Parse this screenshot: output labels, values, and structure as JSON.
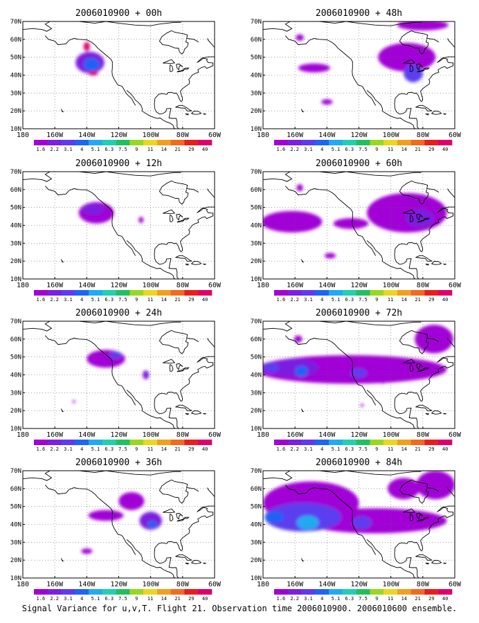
{
  "caption": "Signal Variance for u,v,T. Flight 21. Observation time 2006010900. 2006010600 ensemble.",
  "colors": {
    "levels": [
      "#a100d6",
      "#7c1fe0",
      "#5b3cf0",
      "#1e64f5",
      "#22aaf0",
      "#20d0b0",
      "#20c060",
      "#98d820",
      "#e8d820",
      "#f0a020",
      "#f06a20",
      "#e81e1e",
      "#e0006a"
    ],
    "coast": "#000000",
    "grid": "#666666"
  },
  "chart_data": [
    {
      "type": "contour-map",
      "title": "2006010900 + 00h",
      "lead_hours": 0,
      "xlim": [
        "180",
        "60W"
      ],
      "ylim": [
        "10N",
        "70N"
      ],
      "x_ticks": [
        "180",
        "160W",
        "140W",
        "120W",
        "100W",
        "80W",
        "60W"
      ],
      "y_ticks": [
        "10N",
        "20N",
        "30N",
        "40N",
        "50N",
        "60N",
        "70N"
      ],
      "color_levels": [
        "1.6",
        "2.2",
        "3.1",
        "4",
        "5.1",
        "6.3",
        "7.5",
        "9",
        "11",
        "14",
        "21",
        "29",
        "40"
      ],
      "blobs": [
        {
          "lon": -138,
          "lat": 47,
          "rx": 9,
          "ry": 6,
          "level": 1
        },
        {
          "lon": -137,
          "lat": 46,
          "rx": 5,
          "ry": 3.5,
          "level": 3
        },
        {
          "lon": -140,
          "lat": 56,
          "rx": 2,
          "ry": 2.5,
          "level": 12
        },
        {
          "lon": -136,
          "lat": 41,
          "rx": 3,
          "ry": 1.2,
          "level": 12
        }
      ]
    },
    {
      "type": "contour-map",
      "title": "2006010900 + 12h",
      "lead_hours": 12,
      "xlim": [
        "180",
        "60W"
      ],
      "ylim": [
        "10N",
        "70N"
      ],
      "x_ticks": [
        "180",
        "160W",
        "140W",
        "120W",
        "100W",
        "80W",
        "60W"
      ],
      "y_ticks": [
        "10N",
        "20N",
        "30N",
        "40N",
        "50N",
        "60N",
        "70N"
      ],
      "color_levels": [
        "1.6",
        "2.2",
        "3.1",
        "4",
        "5.1",
        "6.3",
        "7.5",
        "9",
        "11",
        "14",
        "21",
        "29",
        "40"
      ],
      "blobs": [
        {
          "lon": -134,
          "lat": 47,
          "rx": 11,
          "ry": 6,
          "level": 0
        },
        {
          "lon": -136,
          "lat": 49,
          "rx": 7,
          "ry": 3,
          "level": 1
        },
        {
          "lon": -106,
          "lat": 43,
          "rx": 1.5,
          "ry": 1.8,
          "level": 0
        }
      ]
    },
    {
      "type": "contour-map",
      "title": "2006010900 + 24h",
      "lead_hours": 24,
      "xlim": [
        "180",
        "60W"
      ],
      "ylim": [
        "10N",
        "70N"
      ],
      "x_ticks": [
        "180",
        "160W",
        "140W",
        "120W",
        "100W",
        "80W",
        "60W"
      ],
      "y_ticks": [
        "10N",
        "20N",
        "30N",
        "40N",
        "50N",
        "60N",
        "70N"
      ],
      "color_levels": [
        "1.6",
        "2.2",
        "3.1",
        "4",
        "5.1",
        "6.3",
        "7.5",
        "9",
        "11",
        "14",
        "21",
        "29",
        "40"
      ],
      "blobs": [
        {
          "lon": -128,
          "lat": 49,
          "rx": 12,
          "ry": 5,
          "level": 0
        },
        {
          "lon": -122,
          "lat": 51,
          "rx": 4,
          "ry": 2,
          "level": 2
        },
        {
          "lon": -103,
          "lat": 40,
          "rx": 2,
          "ry": 2.5,
          "level": 1
        },
        {
          "lon": -148,
          "lat": 25,
          "rx": 0.8,
          "ry": 0.8,
          "level": 0
        }
      ]
    },
    {
      "type": "contour-map",
      "title": "2006010900 + 36h",
      "lead_hours": 36,
      "xlim": [
        "180",
        "60W"
      ],
      "ylim": [
        "10N",
        "70N"
      ],
      "x_ticks": [
        "180",
        "160W",
        "140W",
        "120W",
        "100W",
        "80W",
        "60W"
      ],
      "y_ticks": [
        "10N",
        "20N",
        "30N",
        "40N",
        "50N",
        "60N",
        "70N"
      ],
      "color_levels": [
        "1.6",
        "2.2",
        "3.1",
        "4",
        "5.1",
        "6.3",
        "7.5",
        "9",
        "11",
        "14",
        "21",
        "29",
        "40"
      ],
      "blobs": [
        {
          "lon": -128,
          "lat": 45,
          "rx": 11,
          "ry": 3,
          "level": 0
        },
        {
          "lon": -112,
          "lat": 53,
          "rx": 8,
          "ry": 5,
          "level": 0
        },
        {
          "lon": -100,
          "lat": 42,
          "rx": 7,
          "ry": 5,
          "level": 1
        },
        {
          "lon": -99,
          "lat": 40,
          "rx": 3,
          "ry": 2,
          "level": 3
        },
        {
          "lon": -140,
          "lat": 25,
          "rx": 3.5,
          "ry": 1.5,
          "level": 0
        }
      ]
    },
    {
      "type": "contour-map",
      "title": "2006010900 + 48h",
      "lead_hours": 48,
      "xlim": [
        "180",
        "60W"
      ],
      "ylim": [
        "10N",
        "70N"
      ],
      "x_ticks": [
        "180",
        "160W",
        "140W",
        "120W",
        "100W",
        "80W",
        "60W"
      ],
      "y_ticks": [
        "10N",
        "20N",
        "30N",
        "40N",
        "50N",
        "60N",
        "70N"
      ],
      "color_levels": [
        "1.6",
        "2.2",
        "3.1",
        "4",
        "5.1",
        "6.3",
        "7.5",
        "9",
        "11",
        "14",
        "21",
        "29",
        "40"
      ],
      "blobs": [
        {
          "lon": -148,
          "lat": 44,
          "rx": 10,
          "ry": 2.5,
          "level": 0
        },
        {
          "lon": -157,
          "lat": 61,
          "rx": 2.5,
          "ry": 1.8,
          "level": 0
        },
        {
          "lon": -90,
          "lat": 50,
          "rx": 18,
          "ry": 8,
          "level": 0
        },
        {
          "lon": -86,
          "lat": 41,
          "rx": 6,
          "ry": 5,
          "level": 2
        },
        {
          "lon": -80,
          "lat": 68,
          "rx": 16,
          "ry": 3,
          "level": 0
        },
        {
          "lon": -140,
          "lat": 25,
          "rx": 3.5,
          "ry": 1.5,
          "level": 0
        }
      ]
    },
    {
      "type": "contour-map",
      "title": "2006010900 + 60h",
      "lead_hours": 60,
      "xlim": [
        "180",
        "60W"
      ],
      "ylim": [
        "10N",
        "70N"
      ],
      "x_ticks": [
        "180",
        "160W",
        "140W",
        "120W",
        "100W",
        "80W",
        "60W"
      ],
      "y_ticks": [
        "10N",
        "20N",
        "30N",
        "40N",
        "50N",
        "60N",
        "70N"
      ],
      "color_levels": [
        "1.6",
        "2.2",
        "3.1",
        "4",
        "5.1",
        "6.3",
        "7.5",
        "9",
        "11",
        "14",
        "21",
        "29",
        "40"
      ],
      "blobs": [
        {
          "lon": -162,
          "lat": 42,
          "rx": 19,
          "ry": 6,
          "level": 0
        },
        {
          "lon": -125,
          "lat": 41,
          "rx": 11,
          "ry": 3,
          "level": 0
        },
        {
          "lon": -90,
          "lat": 47,
          "rx": 25,
          "ry": 11,
          "level": 0
        },
        {
          "lon": -82,
          "lat": 44,
          "rx": 9,
          "ry": 5,
          "level": 1
        },
        {
          "lon": -157,
          "lat": 61,
          "rx": 2,
          "ry": 2,
          "level": 0
        },
        {
          "lon": -138,
          "lat": 23,
          "rx": 3.5,
          "ry": 1.5,
          "level": 0
        }
      ]
    },
    {
      "type": "contour-map",
      "title": "2006010900 + 72h",
      "lead_hours": 72,
      "xlim": [
        "180",
        "60W"
      ],
      "ylim": [
        "10N",
        "70N"
      ],
      "x_ticks": [
        "180",
        "160W",
        "140W",
        "120W",
        "100W",
        "80W",
        "60W"
      ],
      "y_ticks": [
        "10N",
        "20N",
        "30N",
        "40N",
        "50N",
        "60N",
        "70N"
      ],
      "color_levels": [
        "1.6",
        "2.2",
        "3.1",
        "4",
        "5.1",
        "6.3",
        "7.5",
        "9",
        "11",
        "14",
        "21",
        "29",
        "40"
      ],
      "blobs": [
        {
          "lon": -125,
          "lat": 43,
          "rx": 60,
          "ry": 8,
          "level": 0
        },
        {
          "lon": -160,
          "lat": 44,
          "rx": 15,
          "ry": 5,
          "level": 1
        },
        {
          "lon": -156,
          "lat": 42,
          "rx": 4,
          "ry": 3,
          "level": 3
        },
        {
          "lon": -175,
          "lat": 44,
          "rx": 5,
          "ry": 3,
          "level": 2
        },
        {
          "lon": -120,
          "lat": 41,
          "rx": 5,
          "ry": 2.5,
          "level": 2
        },
        {
          "lon": -158,
          "lat": 60,
          "rx": 2.5,
          "ry": 2,
          "level": 0
        },
        {
          "lon": -73,
          "lat": 60,
          "rx": 12,
          "ry": 8,
          "level": 0
        },
        {
          "lon": -105,
          "lat": 36,
          "rx": 1,
          "ry": 1,
          "level": 0
        },
        {
          "lon": -118,
          "lat": 23,
          "rx": 1,
          "ry": 0.8,
          "level": 0
        }
      ]
    },
    {
      "type": "contour-map",
      "title": "2006010900 + 84h",
      "lead_hours": 84,
      "xlim": [
        "180",
        "60W"
      ],
      "ylim": [
        "10N",
        "70N"
      ],
      "x_ticks": [
        "180",
        "160W",
        "140W",
        "120W",
        "100W",
        "80W",
        "60W"
      ],
      "y_ticks": [
        "10N",
        "20N",
        "30N",
        "40N",
        "50N",
        "60N",
        "70N"
      ],
      "color_levels": [
        "1.6",
        "2.2",
        "3.1",
        "4",
        "5.1",
        "6.3",
        "7.5",
        "9",
        "11",
        "14",
        "21",
        "29",
        "40"
      ],
      "blobs": [
        {
          "lon": -150,
          "lat": 52,
          "rx": 30,
          "ry": 12,
          "level": 0
        },
        {
          "lon": -110,
          "lat": 42,
          "rx": 45,
          "ry": 7,
          "level": 0
        },
        {
          "lon": -155,
          "lat": 44,
          "rx": 24,
          "ry": 8,
          "level": 2
        },
        {
          "lon": -173,
          "lat": 44,
          "rx": 6,
          "ry": 3,
          "level": 3
        },
        {
          "lon": -152,
          "lat": 41,
          "rx": 7,
          "ry": 4,
          "level": 4
        },
        {
          "lon": -118,
          "lat": 41,
          "rx": 6,
          "ry": 3.5,
          "level": 2
        },
        {
          "lon": -72,
          "lat": 62,
          "rx": 12,
          "ry": 8,
          "level": 0
        },
        {
          "lon": -92,
          "lat": 60,
          "rx": 10,
          "ry": 6,
          "level": 0
        }
      ]
    }
  ]
}
